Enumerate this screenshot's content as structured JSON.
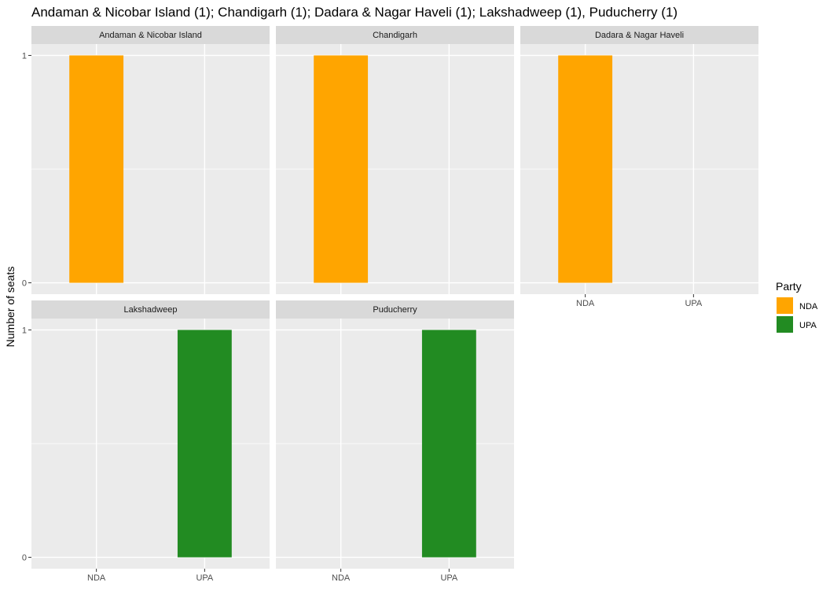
{
  "chart_data": {
    "type": "bar",
    "title": "Andaman & Nicobar Island (1); Chandigarh (1); Dadara & Nagar Haveli (1); Lakshadweep (1),  Puducherry (1)",
    "xlabel": "",
    "ylabel": "Number of seats",
    "categories": [
      "NDA",
      "UPA"
    ],
    "ylim": [
      0,
      1
    ],
    "yticks": [
      0,
      1
    ],
    "grid": true,
    "legend": {
      "title": "Party",
      "position": "right",
      "entries": [
        {
          "label": "NDA",
          "color": "#FFA500"
        },
        {
          "label": "UPA",
          "color": "#228B22"
        }
      ]
    },
    "facets": [
      {
        "name": "Andaman & Nicobar Island",
        "values": [
          1,
          0
        ]
      },
      {
        "name": "Chandigarh",
        "values": [
          1,
          0
        ]
      },
      {
        "name": "Dadara & Nagar Haveli",
        "values": [
          1,
          0
        ]
      },
      {
        "name": "Lakshadweep",
        "values": [
          0,
          1
        ]
      },
      {
        "name": "Puducherry",
        "values": [
          0,
          1
        ]
      }
    ]
  },
  "colors": {
    "panel_background": "#EBEBEB",
    "strip_background": "#D9D9D9",
    "grid_major": "#FFFFFF",
    "grid_minor": "#F5F5F5",
    "NDA": "#FFA500",
    "UPA": "#228B22"
  }
}
